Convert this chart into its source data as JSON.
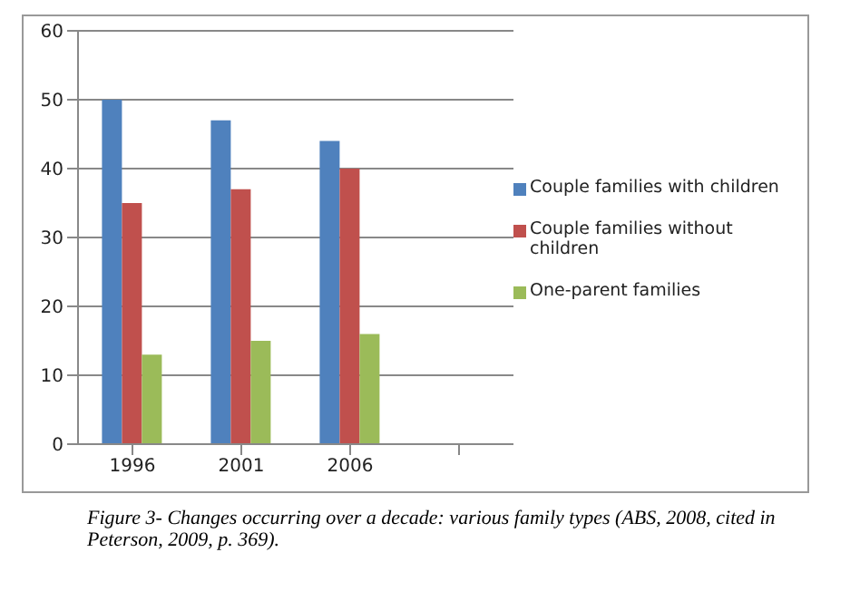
{
  "chart_data": {
    "type": "bar",
    "categories": [
      "1996",
      "2001",
      "2006",
      null
    ],
    "series": [
      {
        "name": "Couple families with children",
        "color": "#4f81bd",
        "values": [
          50,
          47,
          44,
          null
        ]
      },
      {
        "name": "Couple families without children",
        "color": "#c0504d",
        "values": [
          35,
          37,
          40,
          null
        ]
      },
      {
        "name": "One-parent families",
        "color": "#9bbb59",
        "values": [
          13,
          15,
          16,
          null
        ]
      }
    ],
    "ylim": [
      0,
      60
    ],
    "yticks": [
      0,
      10,
      20,
      30,
      40,
      50,
      60
    ],
    "grid": "y",
    "legend": "right",
    "annotations": [
      "Figure 3- Changes occurring over a decade: various family types (ABS, 2008, cited in Peterson, 2009, p. 369)."
    ]
  }
}
